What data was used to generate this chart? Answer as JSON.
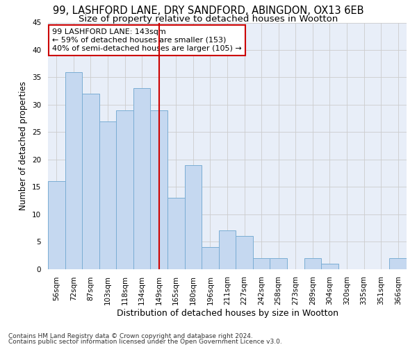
{
  "title1": "99, LASHFORD LANE, DRY SANDFORD, ABINGDON, OX13 6EB",
  "title2": "Size of property relative to detached houses in Wootton",
  "xlabel": "Distribution of detached houses by size in Wootton",
  "ylabel": "Number of detached properties",
  "footnote1": "Contains HM Land Registry data © Crown copyright and database right 2024.",
  "footnote2": "Contains public sector information licensed under the Open Government Licence v3.0.",
  "categories": [
    "56sqm",
    "72sqm",
    "87sqm",
    "103sqm",
    "118sqm",
    "134sqm",
    "149sqm",
    "165sqm",
    "180sqm",
    "196sqm",
    "211sqm",
    "227sqm",
    "242sqm",
    "258sqm",
    "273sqm",
    "289sqm",
    "304sqm",
    "320sqm",
    "335sqm",
    "351sqm",
    "366sqm"
  ],
  "values": [
    16,
    36,
    32,
    27,
    29,
    33,
    29,
    13,
    19,
    4,
    7,
    6,
    2,
    2,
    0,
    2,
    1,
    0,
    0,
    0,
    2
  ],
  "bar_color": "#c5d8f0",
  "bar_edge_color": "#7aadd4",
  "bar_edge_width": 0.7,
  "vline_x": 6,
  "vline_color": "#cc0000",
  "annotation_line1": "99 LASHFORD LANE: 143sqm",
  "annotation_line2": "← 59% of detached houses are smaller (153)",
  "annotation_line3": "40% of semi-detached houses are larger (105) →",
  "annotation_box_color": "white",
  "annotation_box_edge_color": "#cc0000",
  "ylim": [
    0,
    45
  ],
  "yticks": [
    0,
    5,
    10,
    15,
    20,
    25,
    30,
    35,
    40,
    45
  ],
  "grid_color": "#cccccc",
  "bg_color": "#e8eef8",
  "title1_fontsize": 10.5,
  "title2_fontsize": 9.5,
  "xlabel_fontsize": 9,
  "ylabel_fontsize": 8.5,
  "tick_fontsize": 7.5,
  "annotation_fontsize": 8,
  "footnote_fontsize": 6.5
}
